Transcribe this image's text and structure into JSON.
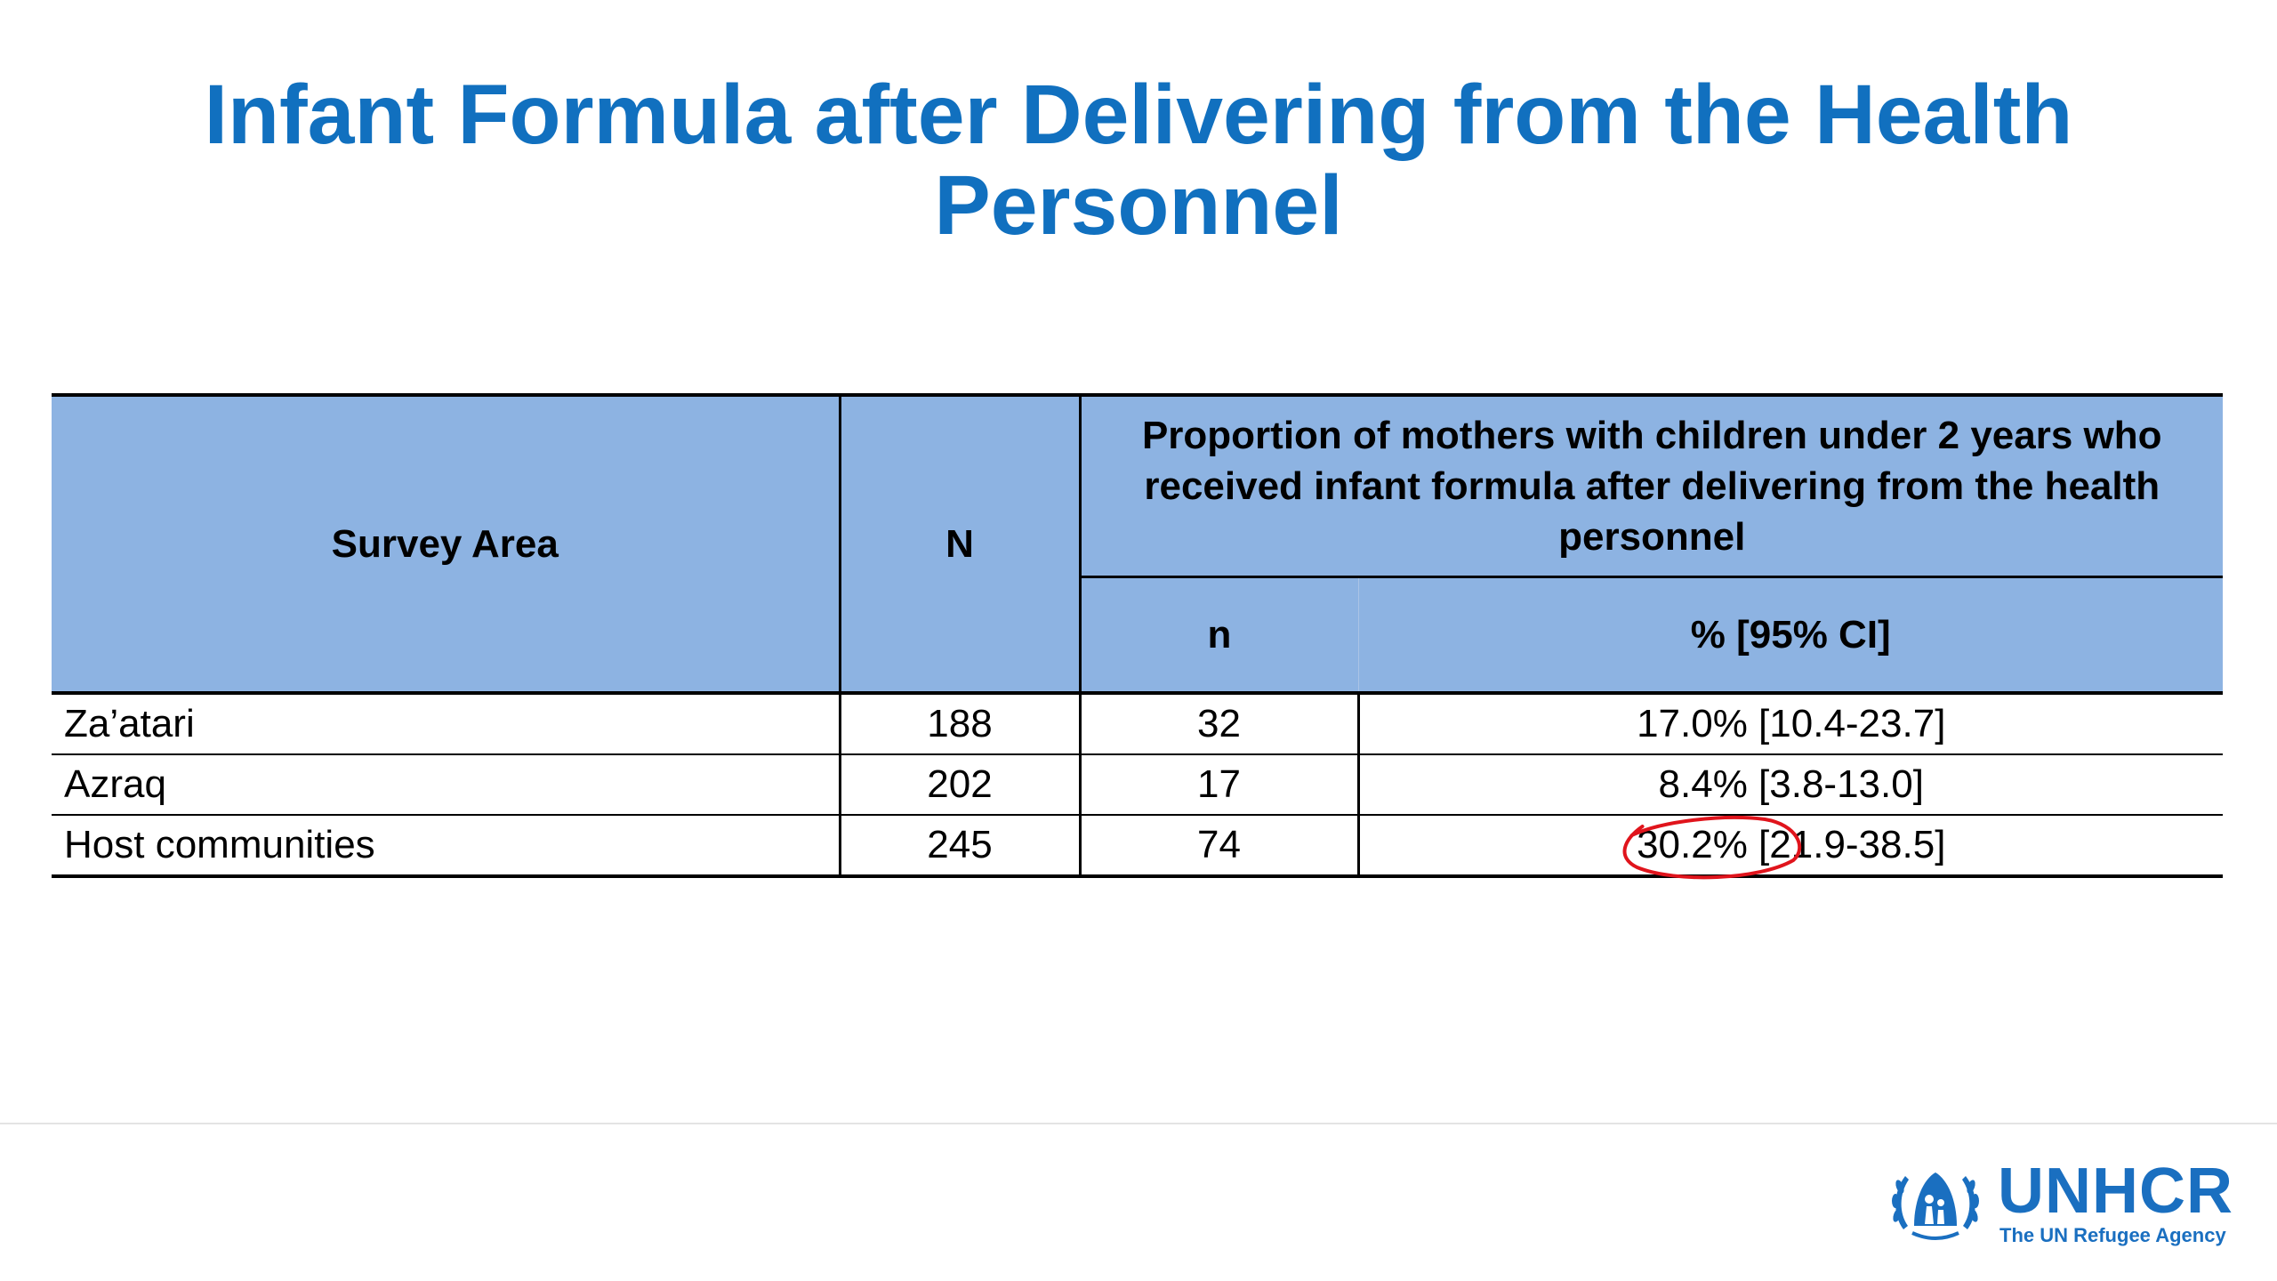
{
  "slide": {
    "title_line1": "Infant Formula after Delivering from the Health",
    "title_line2": "Personnel"
  },
  "table": {
    "headers": {
      "survey_area": "Survey Area",
      "N": "N",
      "proportion": "Proportion of mothers with children under 2 years who received infant formula after delivering from the health personnel",
      "n": "n",
      "percent_ci": "% [95% CI]"
    },
    "rows": [
      {
        "area": "Za’atari",
        "N": "188",
        "n": "32",
        "pct": "17.0% [10.4-23.7]"
      },
      {
        "area": "Azraq",
        "N": "202",
        "n": "17",
        "pct": "8.4% [3.8-13.0]"
      },
      {
        "area": "Host communities",
        "N": "245",
        "n": "74",
        "pct": "30.2% [21.9-38.5]"
      }
    ],
    "highlighted_value": "30.2%"
  },
  "logo": {
    "wordmark": "UNHCR",
    "tagline": "The UN Refugee Agency"
  },
  "colors": {
    "title": "#1170bf",
    "header_fill": "#8db3e2",
    "highlight_circle": "#e0141c",
    "logo": "#1a6fc0"
  }
}
